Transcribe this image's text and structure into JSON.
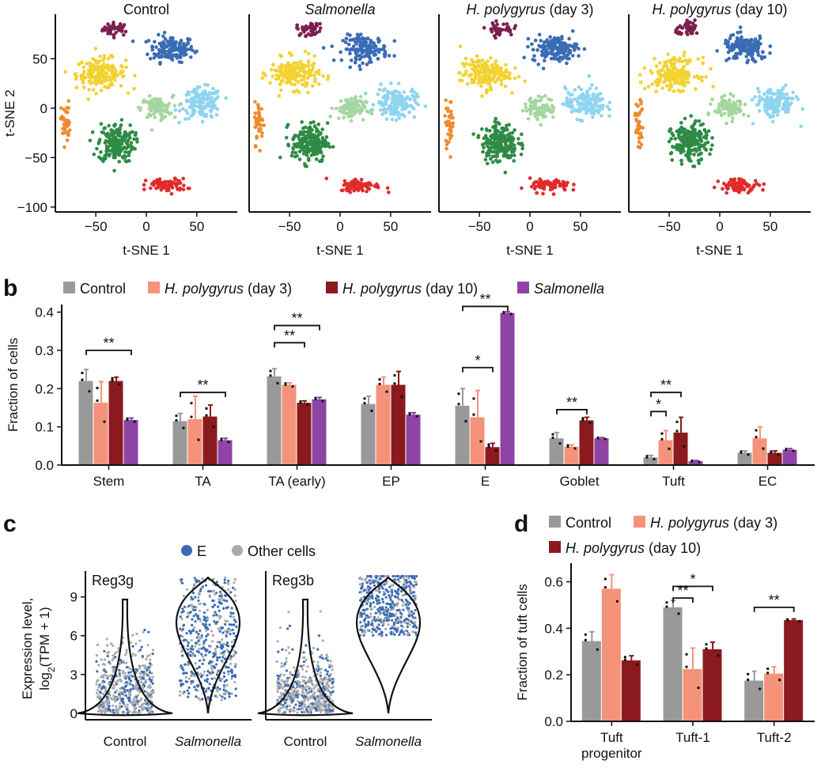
{
  "chart_data": [
    {
      "type": "scatter",
      "panel": "a",
      "titles": [
        "Control",
        "Salmonella",
        "H. polygyrus (day 3)",
        "H. polygyrus (day 10)"
      ],
      "title_italic": [
        "",
        "Salmonella",
        "H. polygyrus",
        "H. polygyrus"
      ],
      "title_rest": [
        "Control",
        "",
        " (day 3)",
        " (day 10)"
      ],
      "xlabel": "t-SNE 1",
      "ylabel": "t-SNE 2",
      "xticks": [
        -50,
        0,
        50
      ],
      "yticks": [
        50,
        0,
        -50,
        -100
      ],
      "xlim": [
        -90,
        90
      ],
      "ylim": [
        -105,
        95
      ],
      "clusters": [
        {
          "color": "#7b1f4e",
          "cx": -30,
          "cy": 80,
          "sx": 12,
          "sy": 6,
          "n": 40
        },
        {
          "color": "#3a6cb4",
          "cx": 25,
          "cy": 60,
          "sx": 20,
          "sy": 12,
          "n": 150
        },
        {
          "color": "#f3d232",
          "cx": -45,
          "cy": 35,
          "sx": 22,
          "sy": 14,
          "n": 180
        },
        {
          "color": "#8fd4f0",
          "cx": 55,
          "cy": 5,
          "sx": 18,
          "sy": 14,
          "n": 150
        },
        {
          "color": "#a6d6a0",
          "cx": 10,
          "cy": 0,
          "sx": 14,
          "sy": 10,
          "n": 90
        },
        {
          "color": "#2e8b45",
          "cx": -30,
          "cy": -35,
          "sx": 16,
          "sy": 18,
          "n": 200
        },
        {
          "color": "#ef8a2e",
          "cx": -80,
          "cy": -15,
          "sx": 4,
          "sy": 20,
          "n": 40
        },
        {
          "color": "#e02b2b",
          "cx": 20,
          "cy": -78,
          "sx": 18,
          "sy": 6,
          "n": 80
        }
      ]
    },
    {
      "type": "bar",
      "panel": "b",
      "ylabel": "Fraction of cells",
      "ylim": [
        0,
        0.42
      ],
      "yticks": [
        0.0,
        0.1,
        0.2,
        0.3,
        0.4
      ],
      "categories": [
        "Stem",
        "TA",
        "TA (early)",
        "EP",
        "E",
        "Goblet",
        "Tuft",
        "EC"
      ],
      "series": [
        {
          "name": "Control",
          "color": "#999999",
          "values": [
            0.22,
            0.115,
            0.232,
            0.16,
            0.155,
            0.07,
            0.02,
            0.032
          ],
          "err": [
            0.03,
            0.02,
            0.02,
            0.02,
            0.045,
            0.015,
            0.005,
            0.005
          ]
        },
        {
          "name": "H. polygyrus (day 3)",
          "color": "#f4937a",
          "values": [
            0.163,
            0.12,
            0.21,
            0.21,
            0.125,
            0.048,
            0.065,
            0.07
          ],
          "err": [
            0.055,
            0.06,
            0.005,
            0.02,
            0.07,
            0.005,
            0.025,
            0.03
          ]
        },
        {
          "name": "H. polygyrus (day 10)",
          "color": "#8b1a1e",
          "values": [
            0.22,
            0.127,
            0.163,
            0.21,
            0.047,
            0.117,
            0.085,
            0.032
          ],
          "err": [
            0.01,
            0.03,
            0.005,
            0.035,
            0.01,
            0.008,
            0.04,
            0.005
          ]
        },
        {
          "name": "Salmonella",
          "color": "#8e44a5",
          "values": [
            0.118,
            0.065,
            0.172,
            0.132,
            0.398,
            0.07,
            0.01,
            0.04
          ],
          "err": [
            0.005,
            0.005,
            0.005,
            0.005,
            0.003,
            0.002,
            0.002,
            0.003
          ]
        }
      ],
      "legend_names": [
        "Control",
        "H. polygyrus",
        " (day 3)",
        "H. polygyrus",
        " (day 10)",
        "Salmonella"
      ],
      "significance": [
        {
          "cat": 0,
          "from": 0,
          "to": 3,
          "y": 0.3,
          "label": "**"
        },
        {
          "cat": 1,
          "from": 0,
          "to": 3,
          "y": 0.19,
          "label": "**"
        },
        {
          "cat": 2,
          "from": 0,
          "to": 2,
          "y": 0.32,
          "label": "**"
        },
        {
          "cat": 2,
          "from": 0,
          "to": 3,
          "y": 0.365,
          "label": "**"
        },
        {
          "cat": 4,
          "from": 0,
          "to": 2,
          "y": 0.255,
          "label": "*"
        },
        {
          "cat": 4,
          "from": 0,
          "to": 3,
          "y": 0.415,
          "label": "**"
        },
        {
          "cat": 5,
          "from": 0,
          "to": 2,
          "y": 0.145,
          "label": "**"
        },
        {
          "cat": 6,
          "from": 0,
          "to": 1,
          "y": 0.14,
          "label": "*"
        },
        {
          "cat": 6,
          "from": 0,
          "to": 2,
          "y": 0.19,
          "label": "**"
        }
      ]
    },
    {
      "type": "scatter",
      "panel": "c",
      "ylabel_line1": "Expression level,",
      "ylabel_line2": "log2(TPM + 1)",
      "yticks": [
        0,
        3,
        6,
        9
      ],
      "ylim": [
        -0.5,
        11
      ],
      "legend": [
        {
          "name": "E",
          "color": "#3a6cb4"
        },
        {
          "name": "Other cells",
          "color": "#aaaaaa"
        }
      ],
      "subplots": [
        {
          "title": "Reg3g",
          "groups": [
            "Control",
            "Salmonella"
          ]
        },
        {
          "title": "Reg3b",
          "groups": [
            "Control",
            "Salmonella"
          ]
        }
      ]
    },
    {
      "type": "bar",
      "panel": "d",
      "ylabel": "Fraction of tuft cells",
      "ylim": [
        0,
        0.68
      ],
      "yticks": [
        0.0,
        0.2,
        0.4,
        0.6
      ],
      "categories": [
        "Tuft progenitor",
        "Tuft-1",
        "Tuft-2"
      ],
      "category_lines": [
        [
          "Tuft",
          "progenitor"
        ],
        [
          "Tuft-1"
        ],
        [
          "Tuft-2"
        ]
      ],
      "series": [
        {
          "name": "Control",
          "color": "#999999",
          "values": [
            0.345,
            0.49,
            0.175
          ],
          "err": [
            0.04,
            0.03,
            0.04
          ]
        },
        {
          "name": "H. polygyrus (day 3)",
          "color": "#f4937a",
          "values": [
            0.57,
            0.225,
            0.205
          ],
          "err": [
            0.06,
            0.09,
            0.03
          ]
        },
        {
          "name": "H. polygyrus (day 10)",
          "color": "#8b1a1e",
          "values": [
            0.262,
            0.31,
            0.435
          ],
          "err": [
            0.02,
            0.03,
            0.005
          ]
        }
      ],
      "significance": [
        {
          "cat": 1,
          "from": 0,
          "to": 1,
          "y": 0.53,
          "label": "**"
        },
        {
          "cat": 1,
          "from": 0,
          "to": 2,
          "y": 0.58,
          "label": "*"
        },
        {
          "cat": 2,
          "from": 0,
          "to": 2,
          "y": 0.49,
          "label": "**"
        }
      ]
    }
  ],
  "labels": {
    "panel_b": "b",
    "panel_c": "c",
    "panel_d": "d"
  }
}
